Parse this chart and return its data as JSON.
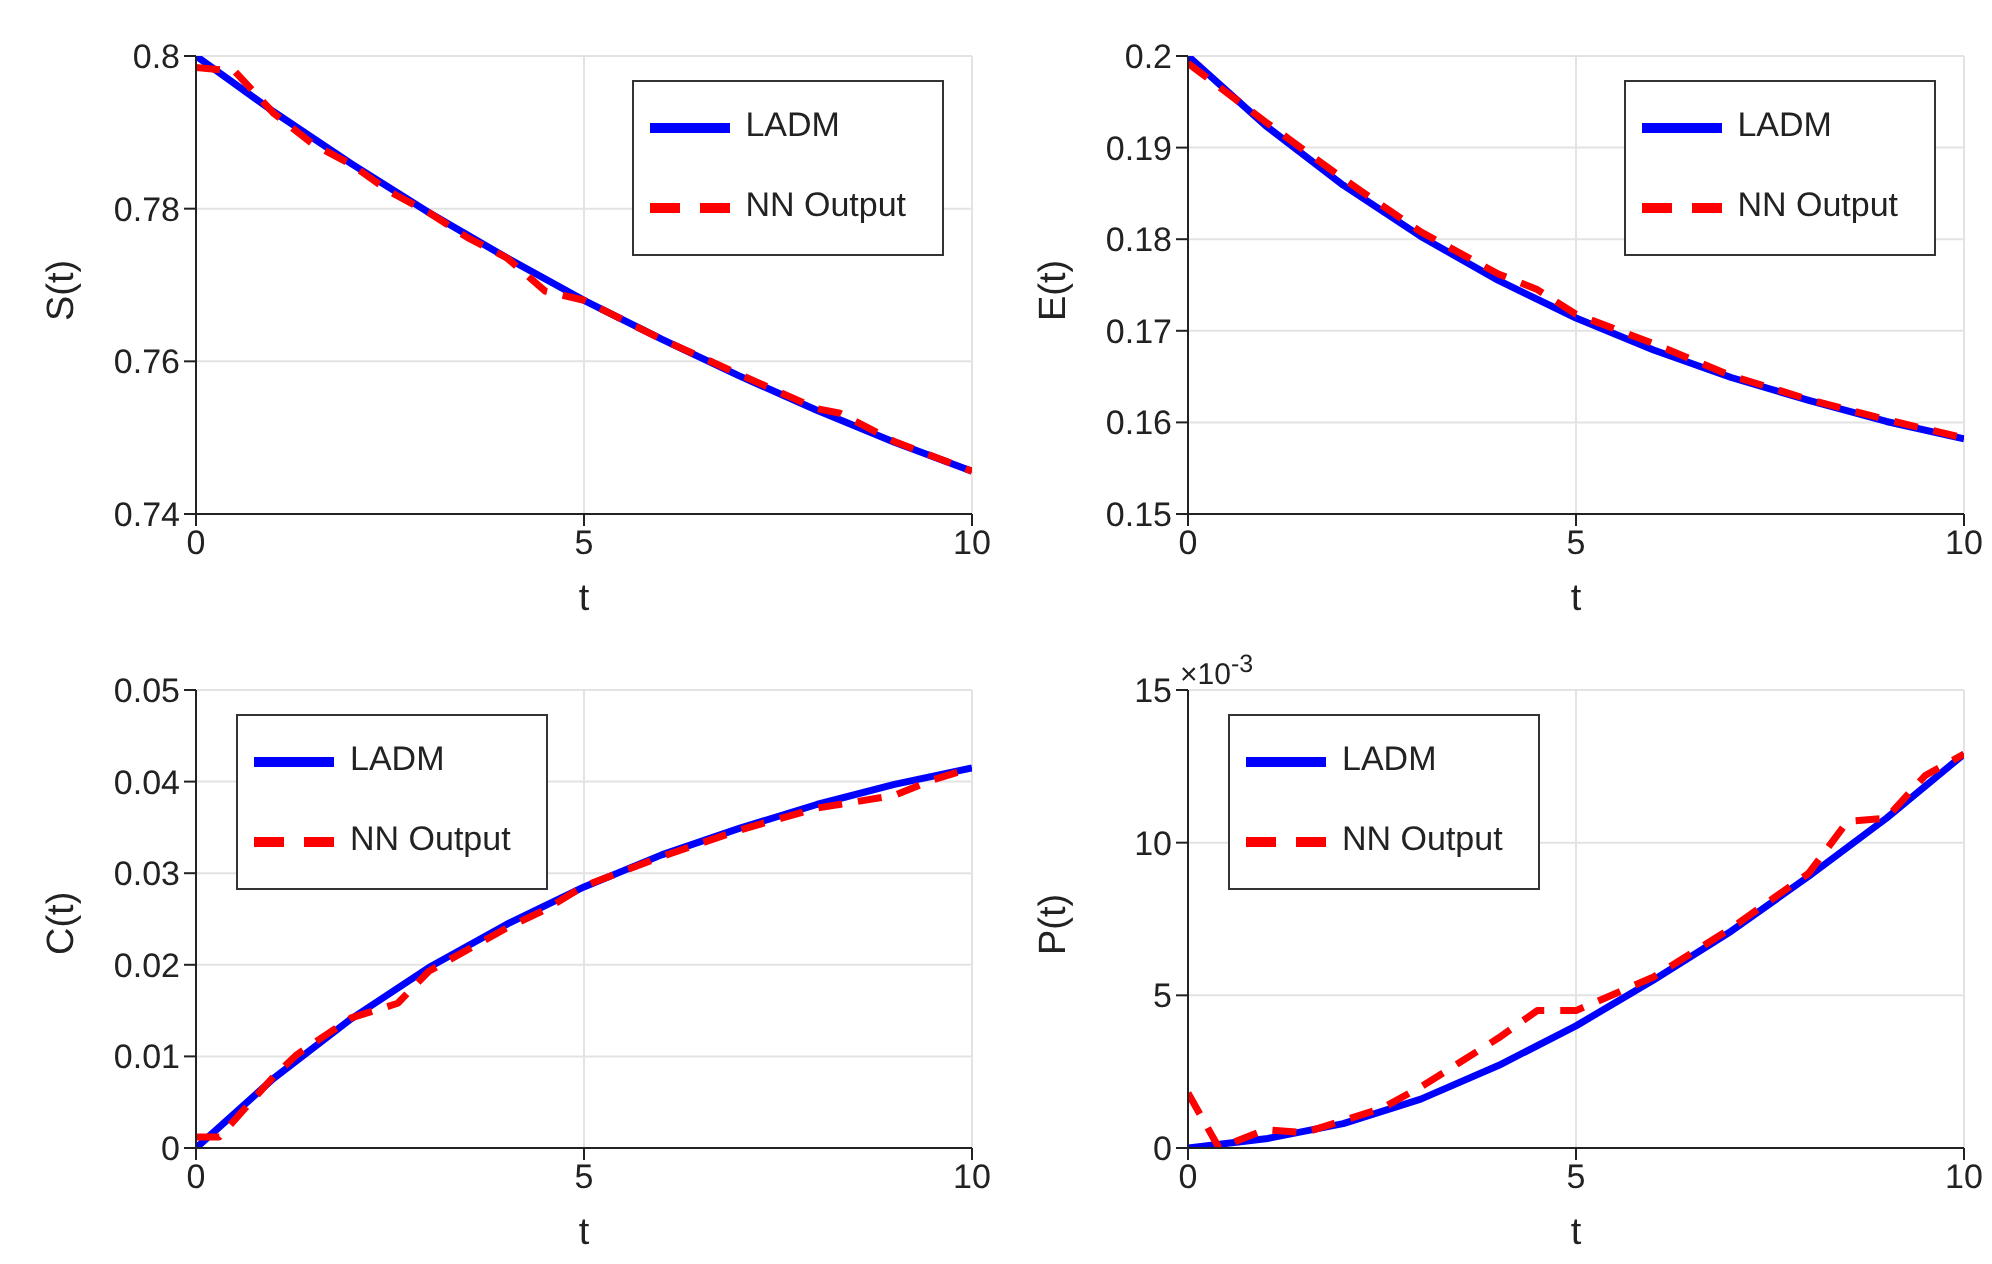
{
  "chart_data": [
    {
      "type": "line",
      "xlabel": "t",
      "ylabel": "S(t)",
      "xlim": [
        0,
        10
      ],
      "xticks": [
        0,
        5,
        10
      ],
      "ylim": [
        0.74,
        0.8
      ],
      "yticks": [
        0.74,
        0.76,
        0.78,
        0.8
      ],
      "grid": true,
      "legend": "top right",
      "series": [
        {
          "name": "LADM",
          "color": "#0000ff",
          "line_style": "solid",
          "x": [
            0,
            1,
            2,
            3,
            4,
            5,
            6,
            7,
            8,
            9,
            10
          ],
          "values": [
            0.8,
            0.7927,
            0.7859,
            0.7795,
            0.7736,
            0.768,
            0.7629,
            0.7581,
            0.7536,
            0.7494,
            0.7456
          ]
        },
        {
          "name": "NN Output",
          "color": "#ff0000",
          "line_style": "dashed",
          "x": [
            0,
            0.5,
            1,
            1.5,
            2,
            2.5,
            3,
            3.5,
            4,
            4.5,
            5,
            6,
            7,
            8,
            8.3,
            9,
            10
          ],
          "values": [
            0.7985,
            0.798,
            0.7925,
            0.7885,
            0.7858,
            0.7822,
            0.7795,
            0.7762,
            0.7736,
            0.7692,
            0.768,
            0.7629,
            0.7583,
            0.7538,
            0.7532,
            0.7495,
            0.7456
          ]
        }
      ]
    },
    {
      "type": "line",
      "xlabel": "t",
      "ylabel": "E(t)",
      "xlim": [
        0,
        10
      ],
      "xticks": [
        0,
        5,
        10
      ],
      "ylim": [
        0.15,
        0.2
      ],
      "yticks": [
        0.15,
        0.16,
        0.17,
        0.18,
        0.19,
        0.2
      ],
      "grid": true,
      "legend": "top right",
      "series": [
        {
          "name": "LADM",
          "color": "#0000ff",
          "line_style": "solid",
          "x": [
            0,
            1,
            2,
            3,
            4,
            5,
            6,
            7,
            8,
            9,
            10
          ],
          "values": [
            0.2,
            0.1924,
            0.1859,
            0.1803,
            0.1755,
            0.1714,
            0.1679,
            0.1649,
            0.1624,
            0.1601,
            0.1582
          ]
        },
        {
          "name": "NN Output",
          "color": "#ff0000",
          "line_style": "dashed",
          "x": [
            0,
            1,
            2,
            3,
            4,
            4.5,
            5,
            6,
            7,
            8,
            9,
            10
          ],
          "values": [
            0.1992,
            0.1928,
            0.1866,
            0.1808,
            0.1762,
            0.1745,
            0.1718,
            0.1686,
            0.1651,
            0.1625,
            0.1603,
            0.1583
          ]
        }
      ]
    },
    {
      "type": "line",
      "xlabel": "t",
      "ylabel": "C(t)",
      "xlim": [
        0,
        10
      ],
      "xticks": [
        0,
        5,
        10
      ],
      "ylim": [
        0,
        0.05
      ],
      "yticks": [
        0,
        0.01,
        0.02,
        0.03,
        0.04,
        0.05
      ],
      "grid": true,
      "legend": "top left",
      "series": [
        {
          "name": "LADM",
          "color": "#0000ff",
          "line_style": "solid",
          "x": [
            0,
            1,
            2,
            3,
            4,
            5,
            6,
            7,
            8,
            9,
            10
          ],
          "values": [
            0,
            0.0076,
            0.0141,
            0.0197,
            0.0244,
            0.0285,
            0.032,
            0.0349,
            0.0375,
            0.0397,
            0.0415
          ]
        },
        {
          "name": "NN Output",
          "color": "#ff0000",
          "line_style": "dashed",
          "x": [
            0,
            0.3,
            1,
            1.3,
            2,
            2.6,
            3,
            4,
            4.5,
            5,
            6,
            7,
            8,
            9,
            9.5,
            10
          ],
          "values": [
            0.0012,
            0.0012,
            0.0078,
            0.0102,
            0.0142,
            0.0158,
            0.0193,
            0.024,
            0.026,
            0.0286,
            0.0318,
            0.0347,
            0.0371,
            0.0385,
            0.0402,
            0.0415
          ]
        }
      ]
    },
    {
      "type": "line",
      "xlabel": "t",
      "ylabel": "P(t)",
      "xlim": [
        0,
        10
      ],
      "xticks": [
        0,
        5,
        10
      ],
      "ylim": [
        0,
        15
      ],
      "yticks": [
        0,
        5,
        10,
        15
      ],
      "grid": true,
      "legend": "top left",
      "annotations": [
        "×10$^{-3}$"
      ],
      "series": [
        {
          "name": "LADM",
          "color": "#0000ff",
          "line_style": "solid",
          "x": [
            0,
            1,
            2,
            3,
            4,
            5,
            6,
            7,
            8,
            9,
            10
          ],
          "values": [
            0,
            0.3,
            0.8,
            1.6,
            2.7,
            4.0,
            5.5,
            7.1,
            8.9,
            10.8,
            12.9
          ]
        },
        {
          "name": "NN Output",
          "color": "#ff0000",
          "line_style": "dashed",
          "x": [
            0,
            0.4,
            1,
            1.5,
            2,
            2.5,
            3,
            3.5,
            4,
            4.5,
            5,
            6,
            7,
            8,
            8.5,
            9,
            9.5,
            10
          ],
          "values": [
            1.8,
            0,
            0.6,
            0.5,
            0.9,
            1.3,
            2.0,
            2.8,
            3.6,
            4.5,
            4.5,
            5.6,
            7.2,
            9.0,
            10.7,
            10.8,
            12.2,
            12.9
          ]
        }
      ]
    }
  ]
}
